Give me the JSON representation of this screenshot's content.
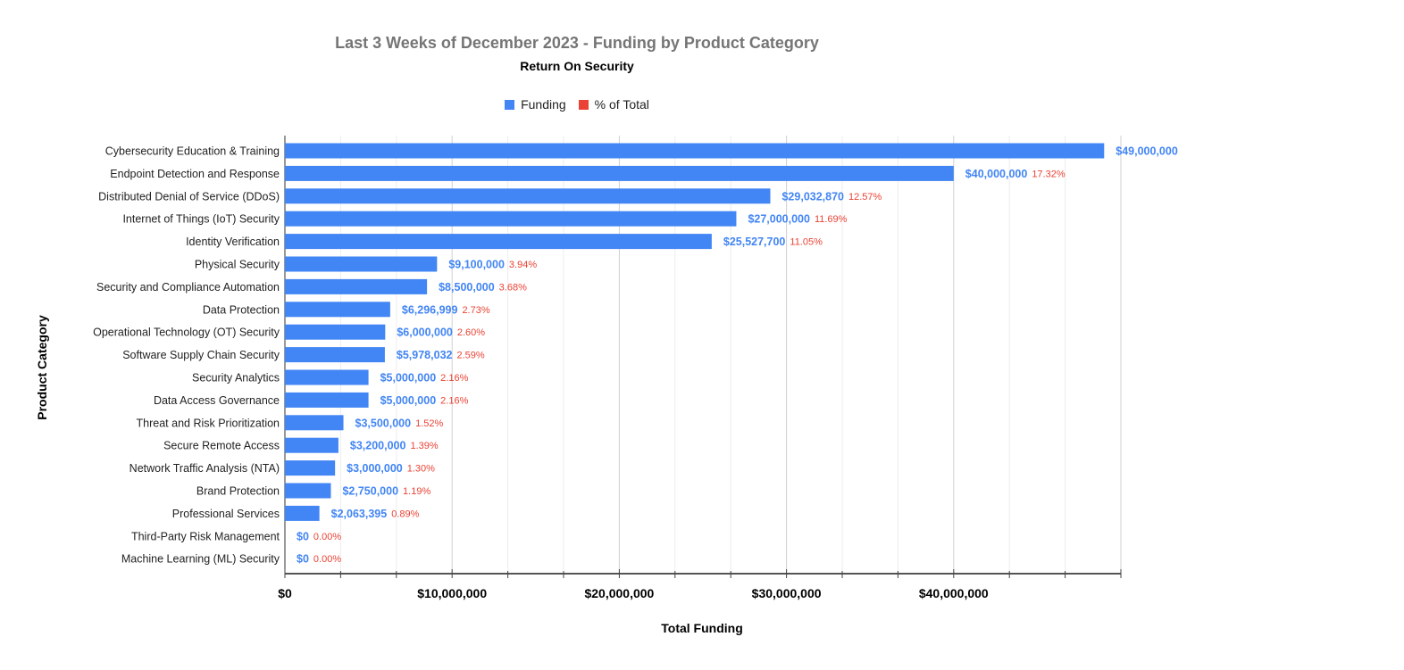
{
  "chart_data": {
    "type": "bar",
    "orientation": "horizontal",
    "title": "Last 3 Weeks of December 2023 - Funding by Product Category",
    "subtitle": "Return On Security",
    "xlabel": "Total Funding",
    "ylabel": "Product Category",
    "xlim": [
      0,
      50000000
    ],
    "x_ticks": [
      "$0",
      "$10,000,000",
      "$20,000,000",
      "$30,000,000",
      "$40,000,000"
    ],
    "x_tick_values": [
      0,
      10000000,
      20000000,
      30000000,
      40000000
    ],
    "grid": true,
    "legend_placement": "top",
    "legend": [
      {
        "name": "Funding",
        "color": "#4285f4"
      },
      {
        "name": "% of Total",
        "color": "#ea4335"
      }
    ],
    "categories": [
      "Cybersecurity Education & Training",
      "Endpoint Detection and Response",
      "Distributed Denial of Service (DDoS)",
      "Internet of Things (IoT) Security",
      "Identity Verification",
      "Physical Security",
      "Security and Compliance Automation",
      "Data Protection",
      "Operational Technology (OT) Security",
      "Software Supply Chain Security",
      "Security Analytics",
      "Data Access Governance",
      "Threat and Risk Prioritization",
      "Secure Remote Access",
      "Network Traffic Analysis (NTA)",
      "Brand Protection",
      "Professional Services",
      "Third-Party Risk Management",
      "Machine Learning (ML) Security"
    ],
    "values": [
      49000000,
      40000000,
      29032870,
      27000000,
      25527700,
      9100000,
      8500000,
      6296999,
      6000000,
      5978032,
      5000000,
      5000000,
      3500000,
      3200000,
      3000000,
      2750000,
      2063395,
      0,
      0
    ],
    "value_labels": [
      "$49,000,000",
      "$40,000,000",
      "$29,032,870",
      "$27,000,000",
      "$25,527,700",
      "$9,100,000",
      "$8,500,000",
      "$6,296,999",
      "$6,000,000",
      "$5,978,032",
      "$5,000,000",
      "$5,000,000",
      "$3,500,000",
      "$3,200,000",
      "$3,000,000",
      "$2,750,000",
      "$2,063,395",
      "$0",
      "$0"
    ],
    "percent_labels": [
      "",
      "17.32%",
      "12.57%",
      "11.69%",
      "11.05%",
      "3.94%",
      "3.68%",
      "2.73%",
      "2.60%",
      "2.59%",
      "2.16%",
      "2.16%",
      "1.52%",
      "1.39%",
      "1.30%",
      "1.19%",
      "0.89%",
      "0.00%",
      "0.00%"
    ]
  }
}
